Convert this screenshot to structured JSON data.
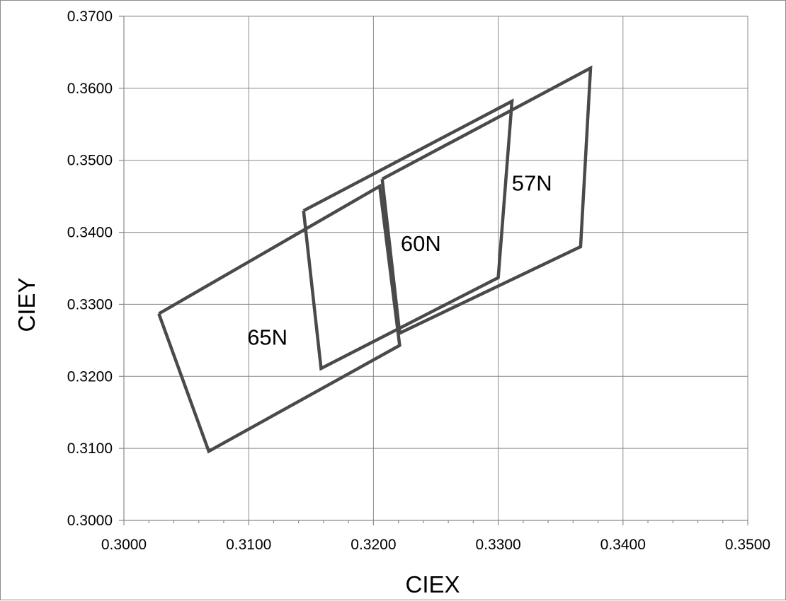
{
  "chart_data": {
    "type": "scatter",
    "title": "",
    "xlabel": "CIEX",
    "ylabel": "CIEY",
    "xlim": [
      0.3,
      0.35
    ],
    "ylim": [
      0.3,
      0.37
    ],
    "x_ticks": [
      "0.3000",
      "0.3100",
      "0.3200",
      "0.3300",
      "0.3400",
      "0.3500"
    ],
    "y_ticks": [
      "0.3000",
      "0.3100",
      "0.3200",
      "0.3300",
      "0.3400",
      "0.3500",
      "0.3600",
      "0.3700"
    ],
    "grid": true,
    "legend": "none",
    "line_color": "#4a4a4a",
    "series": [
      {
        "name": "65N",
        "x": [
          0.3028,
          0.3205,
          0.3221,
          0.3068,
          0.3028
        ],
        "y": [
          0.3287,
          0.3464,
          0.3243,
          0.3096,
          0.3287
        ]
      },
      {
        "name": "60N",
        "x": [
          0.3144,
          0.3311,
          0.33,
          0.3158,
          0.3144
        ],
        "y": [
          0.343,
          0.3582,
          0.3337,
          0.3211,
          0.343
        ]
      },
      {
        "name": "57N",
        "x": [
          0.3207,
          0.3374,
          0.3366,
          0.3221,
          0.3207
        ],
        "y": [
          0.3474,
          0.3628,
          0.338,
          0.326,
          0.3474
        ]
      }
    ],
    "annotations": [
      {
        "text": "65N",
        "x": 0.3115,
        "y": 0.3255
      },
      {
        "text": "60N",
        "x": 0.3238,
        "y": 0.3385
      },
      {
        "text": "57N",
        "x": 0.3327,
        "y": 0.3469
      }
    ]
  }
}
